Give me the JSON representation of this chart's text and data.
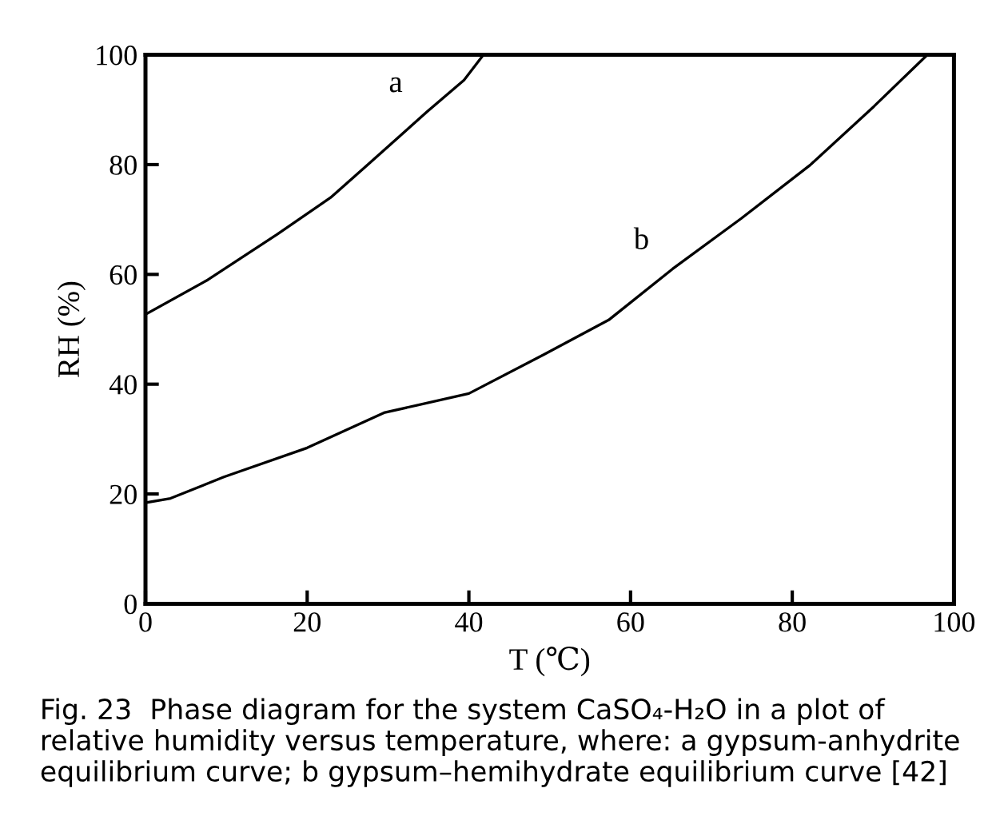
{
  "chart_data": {
    "type": "line",
    "xlabel": "T (℃)",
    "ylabel": "RH (%)",
    "series": [
      {
        "name": "a",
        "color": "#000000",
        "x": [
          0,
          7.7,
          16.3,
          22.9,
          27.5,
          34.8,
          39.4,
          41.8
        ],
        "values": [
          52.7,
          59,
          67.3,
          74,
          80,
          89.6,
          95.4,
          100
        ]
      },
      {
        "name": "b",
        "color": "#000000",
        "x": [
          0,
          3.1,
          9.7,
          20,
          29.5,
          40,
          49.3,
          57.3,
          65.2,
          73.7,
          82.2,
          90.1,
          96.7
        ],
        "values": [
          18.4,
          19.2,
          23.1,
          28.4,
          34.8,
          38.3,
          45.4,
          51.7,
          61,
          70.2,
          79.9,
          90.6,
          100
        ]
      }
    ],
    "xlim": [
      0,
      100
    ],
    "ylim": [
      0,
      100
    ],
    "xticks": [
      0,
      20,
      40,
      60,
      80,
      100
    ],
    "yticks": [
      0,
      20,
      40,
      60,
      80,
      100
    ],
    "grid": false,
    "marker": "none",
    "line_style": "solid",
    "annotations": [
      "Fig. 23  Phase diagram for the system CaSO₄-H₂O in a plot of relative humidity versus temperature, where: a gypsum-anhydrite equilibrium curve; b gypsum–hemihydrate equilibrium curve [42]"
    ]
  }
}
